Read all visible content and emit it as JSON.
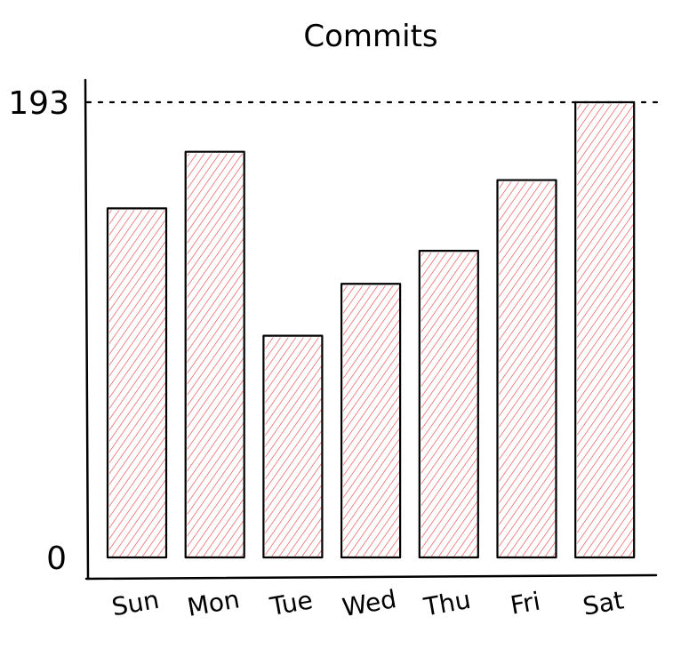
{
  "chart_data": {
    "type": "bar",
    "title": "Commits",
    "categories": [
      "Sun",
      "Mon",
      "Tue",
      "Wed",
      "Thu",
      "Fri",
      "Sat"
    ],
    "values": [
      148,
      172,
      94,
      116,
      130,
      160,
      193
    ],
    "ylim": [
      0,
      193
    ],
    "yticks": [
      "0",
      "193"
    ],
    "max_line": "dotted",
    "bar_fill": "hatched",
    "colors": {
      "hatch": "#e8474c",
      "outline": "#000000"
    }
  }
}
